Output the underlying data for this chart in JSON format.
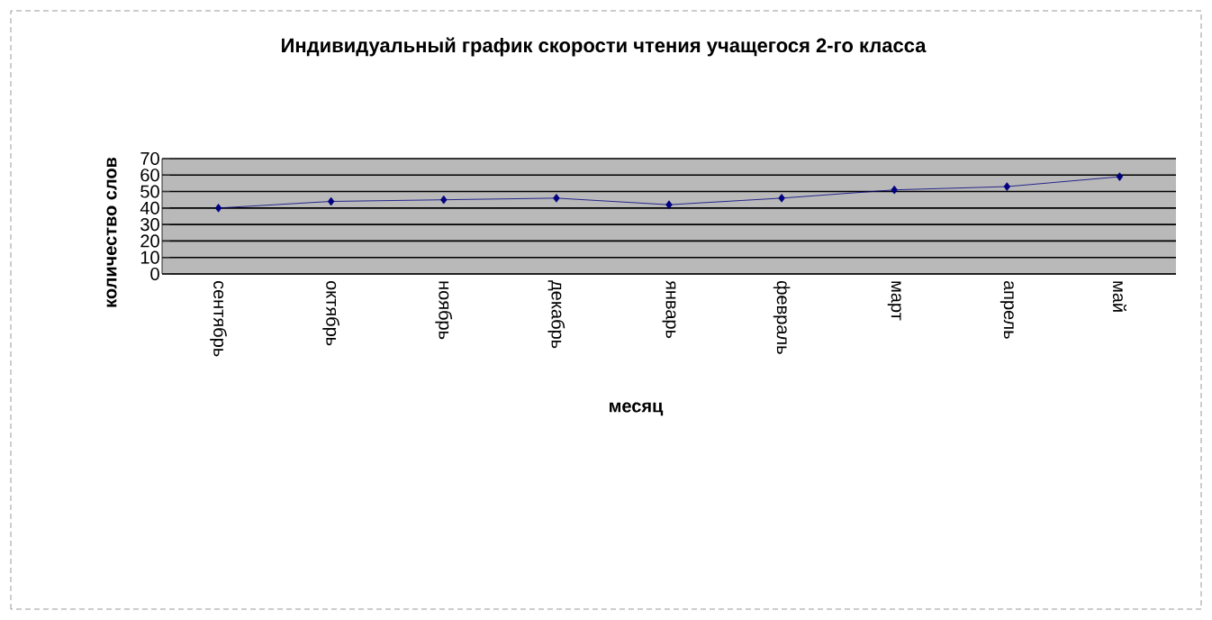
{
  "chart_data": {
    "type": "line",
    "title": "Индивидуальный  график скорости  чтения учащегося  2-го  класса",
    "xlabel": "месяц",
    "ylabel": "количество слов",
    "categories": [
      "сентябрь",
      "октябрь",
      "ноябрь",
      "декабрь",
      "январь",
      "февраль",
      "март",
      "апрель",
      "май"
    ],
    "series": [
      {
        "color": "#000080",
        "values": [
          40,
          44,
          45,
          46,
          42,
          46,
          51,
          53,
          59
        ]
      }
    ],
    "ylim": [
      0,
      70
    ],
    "yticks": [
      0,
      10,
      20,
      30,
      40,
      50,
      60,
      70
    ],
    "grid": "y",
    "marker": "diamond",
    "line_style": "solid"
  }
}
